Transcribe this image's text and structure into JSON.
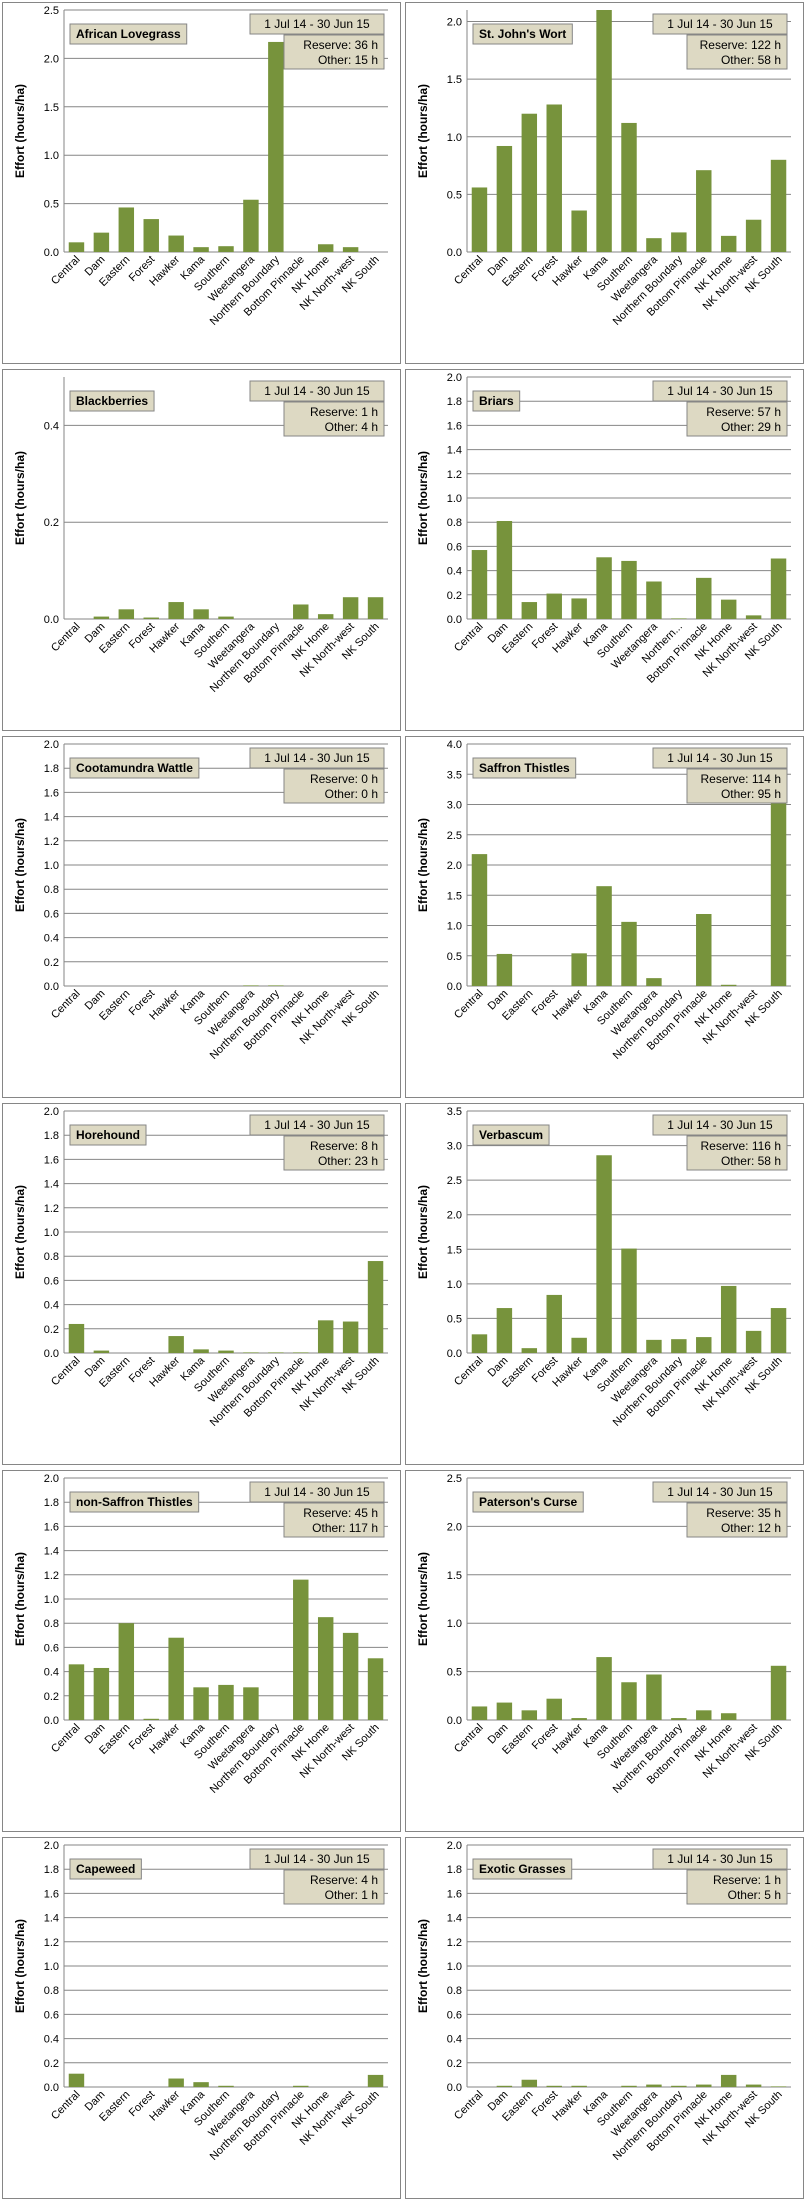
{
  "categories": [
    "Central",
    "Dam",
    "Eastern",
    "Forest",
    "Hawker",
    "Kama",
    "Southern",
    "Weetangera",
    "Northern Boundary",
    "Bottom Pinnacle",
    "NK Home",
    "NK North-west",
    "NK South"
  ],
  "ylabel": "Effort  (hours/ha)",
  "date_range": "1 Jul 14  -  30 Jun 15",
  "colors": {
    "bar": "#77933c",
    "grid": "#868686",
    "box_bg": "#ddd9c3",
    "border": "#868686"
  },
  "chart_data": [
    {
      "type": "bar",
      "title": "African Lovegrass",
      "ylabel": "Effort  (hours/ha)",
      "ylim": [
        0,
        2.5
      ],
      "yticks": [
        "0.0",
        "0.5",
        "1.0",
        "1.5",
        "2.0",
        "2.5"
      ],
      "values": [
        0.1,
        0.2,
        0.46,
        0.34,
        0.17,
        0.05,
        0.06,
        0.54,
        2.17,
        0.0,
        0.08,
        0.05,
        0.0
      ],
      "date_range": "1 Jul 14  -  30 Jun 15",
      "reserve": "Reserve: 36 h",
      "other": "Other: 15 h"
    },
    {
      "type": "bar",
      "title": "St. John's Wort",
      "ylabel": "Effort  (hours/ha)",
      "ylim": [
        0,
        2.1
      ],
      "yticks": [
        "0.0",
        "0.5",
        "1.0",
        "1.5",
        "2.0"
      ],
      "values": [
        0.56,
        0.92,
        1.2,
        1.28,
        0.36,
        2.1,
        1.12,
        0.12,
        0.17,
        0.71,
        0.14,
        0.28,
        0.8
      ],
      "date_range": "1 Jul 14  -  30 Jun 15",
      "reserve": "Reserve: 122 h",
      "other": "Other: 58 h"
    },
    {
      "type": "bar",
      "title": "Blackberries",
      "ylabel": "Effort  (hours/ha)",
      "ylim": [
        0,
        0.5
      ],
      "yticks": [
        "0.0",
        "0.2",
        "0.4"
      ],
      "values": [
        0.0,
        0.005,
        0.02,
        0.003,
        0.035,
        0.02,
        0.005,
        0.0,
        0.0,
        0.03,
        0.01,
        0.045,
        0.045
      ],
      "date_range": "1 Jul 14  -  30 Jun 15",
      "reserve": "Reserve: 1 h",
      "other": "Other: 4 h"
    },
    {
      "type": "bar",
      "title": "Briars",
      "ylabel": "Effort  (hours/ha)",
      "ylim": [
        0,
        2.0
      ],
      "yticks": [
        "0.0",
        "0.2",
        "0.4",
        "0.6",
        "0.8",
        "1.0",
        "1.2",
        "1.4",
        "1.6",
        "1.8",
        "2.0"
      ],
      "values": [
        0.57,
        0.81,
        0.14,
        0.21,
        0.17,
        0.51,
        0.48,
        0.31,
        0.005,
        0.34,
        0.16,
        0.03,
        0.5
      ],
      "categories": [
        "Central",
        "Dam",
        "Eastern",
        "Forest",
        "Hawker",
        "Kama",
        "Southern",
        "Weetangera",
        "Northern...",
        "Bottom Pinnacle",
        "NK Home",
        "NK North-west",
        "NK South"
      ],
      "date_range": "1 Jul 14  -  30 Jun 15",
      "reserve": "Reserve: 57 h",
      "other": "Other: 29 h"
    },
    {
      "type": "bar",
      "title": "Cootamundra Wattle",
      "ylabel": "Effort  (hours/ha)",
      "ylim": [
        0,
        2.0
      ],
      "yticks": [
        "0.0",
        "0.2",
        "0.4",
        "0.6",
        "0.8",
        "1.0",
        "1.2",
        "1.4",
        "1.6",
        "1.8",
        "2.0"
      ],
      "values": [
        0,
        0,
        0,
        0,
        0,
        0,
        0,
        0.005,
        0.005,
        0,
        0,
        0,
        0
      ],
      "date_range": "1 Jul 14  -  30 Jun 15",
      "reserve": "Reserve: 0 h",
      "other": "Other: 0 h"
    },
    {
      "type": "bar",
      "title": "Saffron Thistles",
      "ylabel": "Effort  (hours/ha)",
      "ylim": [
        0,
        4.0
      ],
      "yticks": [
        "0.0",
        "0.5",
        "1.0",
        "1.5",
        "2.0",
        "2.5",
        "3.0",
        "3.5",
        "4.0"
      ],
      "values": [
        2.18,
        0.53,
        0,
        0,
        0.54,
        1.65,
        1.06,
        0.13,
        0,
        1.19,
        0.02,
        0,
        3.48
      ],
      "date_range": "1 Jul 14  -  30 Jun 15",
      "reserve": "Reserve: 114 h",
      "other": "Other: 95 h"
    },
    {
      "type": "bar",
      "title": "Horehound",
      "ylabel": "Effort  (hours/ha)",
      "ylim": [
        0,
        2.0
      ],
      "yticks": [
        "0.0",
        "0.2",
        "0.4",
        "0.6",
        "0.8",
        "1.0",
        "1.2",
        "1.4",
        "1.6",
        "1.8",
        "2.0"
      ],
      "values": [
        0.24,
        0.02,
        0,
        0,
        0.14,
        0.03,
        0.02,
        0.005,
        0.005,
        0.005,
        0.27,
        0.26,
        0.76
      ],
      "date_range": "1 Jul 14  -  30 Jun 15",
      "reserve": "Reserve: 8 h",
      "other": "Other: 23 h"
    },
    {
      "type": "bar",
      "title": "Verbascum",
      "ylabel": "Effort  (hours/ha)",
      "ylim": [
        0,
        3.5
      ],
      "yticks": [
        "0.0",
        "0.5",
        "1.0",
        "1.5",
        "2.0",
        "2.5",
        "3.0",
        "3.5"
      ],
      "values": [
        0.27,
        0.65,
        0.07,
        0.84,
        0.22,
        2.86,
        1.51,
        0.19,
        0.2,
        0.23,
        0.97,
        0.32,
        0.65
      ],
      "date_range": "1 Jul 14  -  30 Jun 15",
      "reserve": "Reserve: 116 h",
      "other": "Other: 58 h"
    },
    {
      "type": "bar",
      "title": "non-Saffron Thistles",
      "ylabel": "Effort  (hours/ha)",
      "ylim": [
        0,
        2.0
      ],
      "yticks": [
        "0.0",
        "0.2",
        "0.4",
        "0.6",
        "0.8",
        "1.0",
        "1.2",
        "1.4",
        "1.6",
        "1.8",
        "2.0"
      ],
      "values": [
        0.46,
        0.43,
        0.8,
        0.01,
        0.68,
        0.27,
        0.29,
        0.27,
        0,
        1.16,
        0.85,
        0.72,
        0.51
      ],
      "date_range": "1 Jul 14  -  30 Jun 15",
      "reserve": "Reserve: 45 h",
      "other": "Other: 117 h"
    },
    {
      "type": "bar",
      "title": "Paterson's Curse",
      "ylabel": "Effort  (hours/ha)",
      "ylim": [
        0,
        2.5
      ],
      "yticks": [
        "0.0",
        "0.5",
        "1.0",
        "1.5",
        "2.0",
        "2.5"
      ],
      "values": [
        0.14,
        0.18,
        0.1,
        0.22,
        0.02,
        0.65,
        0.39,
        0.47,
        0.02,
        0.1,
        0.07,
        0,
        0.56
      ],
      "date_range": "1 Jul 14  -  30 Jun 15",
      "reserve": "Reserve: 35 h",
      "other": "Other: 12 h"
    },
    {
      "type": "bar",
      "title": "Capeweed",
      "ylabel": "Effort  (hours/ha)",
      "ylim": [
        0,
        2.0
      ],
      "yticks": [
        "0.0",
        "0.2",
        "0.4",
        "0.6",
        "0.8",
        "1.0",
        "1.2",
        "1.4",
        "1.6",
        "1.8",
        "2.0"
      ],
      "values": [
        0.11,
        0,
        0,
        0,
        0.07,
        0.04,
        0.01,
        0,
        0,
        0.01,
        0,
        0,
        0.1
      ],
      "date_range": "1 Jul 14  -  30 Jun 15",
      "reserve": "Reserve: 4 h",
      "other": "Other: 1 h"
    },
    {
      "type": "bar",
      "title": "Exotic Grasses",
      "ylabel": "Effort  (hours/ha)",
      "ylim": [
        0,
        2.0
      ],
      "yticks": [
        "0.0",
        "0.2",
        "0.4",
        "0.6",
        "0.8",
        "1.0",
        "1.2",
        "1.4",
        "1.6",
        "1.8",
        "2.0"
      ],
      "values": [
        0,
        0.01,
        0.06,
        0.01,
        0.01,
        0,
        0.01,
        0.02,
        0.01,
        0.02,
        0.1,
        0.02,
        0.005
      ],
      "date_range": "1 Jul 14  -  30 Jun 15",
      "reserve": "Reserve: 1 h",
      "other": "Other: 5 h"
    }
  ]
}
